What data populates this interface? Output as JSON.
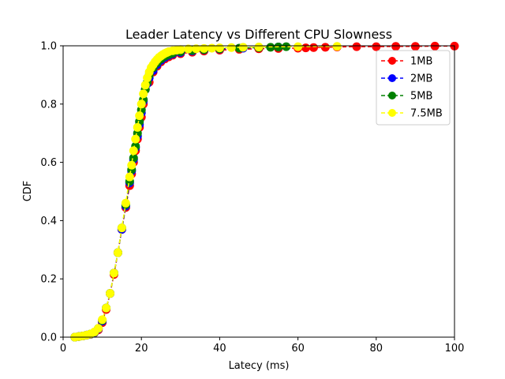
{
  "chart_data": {
    "type": "line",
    "title": "Leader Latency vs Different CPU Slowness",
    "xlabel": "Latecy (ms)",
    "ylabel": "CDF",
    "xlim": [
      0,
      100
    ],
    "ylim": [
      0,
      1.0
    ],
    "xticks": [
      "0",
      "20",
      "40",
      "60",
      "80",
      "100"
    ],
    "yticks": [
      "0.0",
      "0.2",
      "0.4",
      "0.6",
      "0.8",
      "1.0"
    ],
    "grid": false,
    "legend_position": "top-right",
    "series": [
      {
        "name": "1MB",
        "color": "#ff0000",
        "x": [
          3,
          4,
          5,
          6,
          7,
          8,
          9,
          10,
          11,
          12,
          13,
          14,
          15,
          16,
          17,
          17.5,
          18,
          18.5,
          19,
          19.5,
          20,
          20.5,
          21,
          22,
          23,
          24,
          25,
          26,
          27,
          28,
          30,
          33,
          36,
          40,
          45,
          50,
          55,
          60,
          62,
          64,
          67,
          70,
          75,
          80,
          85,
          90,
          95,
          100
        ],
        "y": [
          0.0,
          0.002,
          0.004,
          0.007,
          0.01,
          0.015,
          0.025,
          0.05,
          0.095,
          0.15,
          0.215,
          0.29,
          0.37,
          0.445,
          0.52,
          0.56,
          0.6,
          0.64,
          0.68,
          0.72,
          0.755,
          0.8,
          0.85,
          0.875,
          0.91,
          0.93,
          0.945,
          0.955,
          0.962,
          0.968,
          0.973,
          0.978,
          0.982,
          0.985,
          0.988,
          0.99,
          0.991,
          0.992,
          0.993,
          0.994,
          0.995,
          0.996,
          0.997,
          0.997,
          0.998,
          0.998,
          0.999,
          0.999
        ]
      },
      {
        "name": "2MB",
        "color": "#0000ff",
        "x": [
          3,
          4,
          5,
          6,
          7,
          8,
          9,
          10,
          11,
          12,
          13,
          14,
          15,
          16,
          17,
          17.5,
          18,
          18.5,
          19,
          19.5,
          20,
          20.5,
          21,
          21.5,
          22,
          23,
          24,
          25,
          26,
          27,
          28,
          30,
          33,
          36,
          40,
          46,
          50,
          55
        ],
        "y": [
          0.0,
          0.002,
          0.004,
          0.007,
          0.01,
          0.016,
          0.028,
          0.055,
          0.1,
          0.15,
          0.22,
          0.29,
          0.37,
          0.45,
          0.53,
          0.57,
          0.61,
          0.65,
          0.69,
          0.73,
          0.77,
          0.81,
          0.85,
          0.87,
          0.89,
          0.915,
          0.935,
          0.95,
          0.96,
          0.967,
          0.972,
          0.977,
          0.982,
          0.986,
          0.989,
          0.992,
          0.994,
          0.996
        ]
      },
      {
        "name": "5MB",
        "color": "#008000",
        "x": [
          3,
          4,
          5,
          6,
          7,
          8,
          9,
          10,
          11,
          12,
          13,
          14,
          15,
          16,
          17,
          17.5,
          18,
          18.5,
          19,
          19.5,
          20,
          20.5,
          21,
          21.5,
          22,
          23,
          24,
          25,
          26,
          27,
          28,
          30,
          33,
          36,
          40,
          45,
          50,
          53,
          55,
          57
        ],
        "y": [
          0.0,
          0.002,
          0.004,
          0.007,
          0.011,
          0.017,
          0.03,
          0.058,
          0.1,
          0.15,
          0.22,
          0.29,
          0.375,
          0.455,
          0.535,
          0.575,
          0.615,
          0.655,
          0.7,
          0.74,
          0.78,
          0.815,
          0.85,
          0.875,
          0.9,
          0.925,
          0.942,
          0.955,
          0.964,
          0.97,
          0.975,
          0.98,
          0.984,
          0.987,
          0.99,
          0.992,
          0.994,
          0.995,
          0.996,
          0.997
        ]
      },
      {
        "name": "7.5MB",
        "color": "#ffff00",
        "x": [
          3,
          4,
          5,
          6,
          7,
          8,
          9,
          10,
          11,
          12,
          13,
          14,
          15,
          16,
          17,
          17.5,
          18,
          18.5,
          19,
          19.5,
          20,
          20.5,
          21,
          21.5,
          22,
          22.5,
          23,
          23.5,
          24,
          24.5,
          25,
          25.5,
          26,
          26.5,
          27,
          28,
          29,
          30,
          32,
          34,
          36,
          38,
          40,
          43,
          46,
          50,
          60,
          70
        ],
        "y": [
          0.0,
          0.002,
          0.004,
          0.007,
          0.011,
          0.018,
          0.03,
          0.06,
          0.1,
          0.15,
          0.22,
          0.29,
          0.375,
          0.46,
          0.55,
          0.59,
          0.64,
          0.68,
          0.72,
          0.76,
          0.8,
          0.835,
          0.865,
          0.89,
          0.91,
          0.925,
          0.935,
          0.945,
          0.953,
          0.96,
          0.965,
          0.97,
          0.974,
          0.977,
          0.98,
          0.983,
          0.985,
          0.987,
          0.989,
          0.99,
          0.991,
          0.992,
          0.993,
          0.994,
          0.995,
          0.996,
          0.997,
          0.998
        ]
      }
    ]
  }
}
